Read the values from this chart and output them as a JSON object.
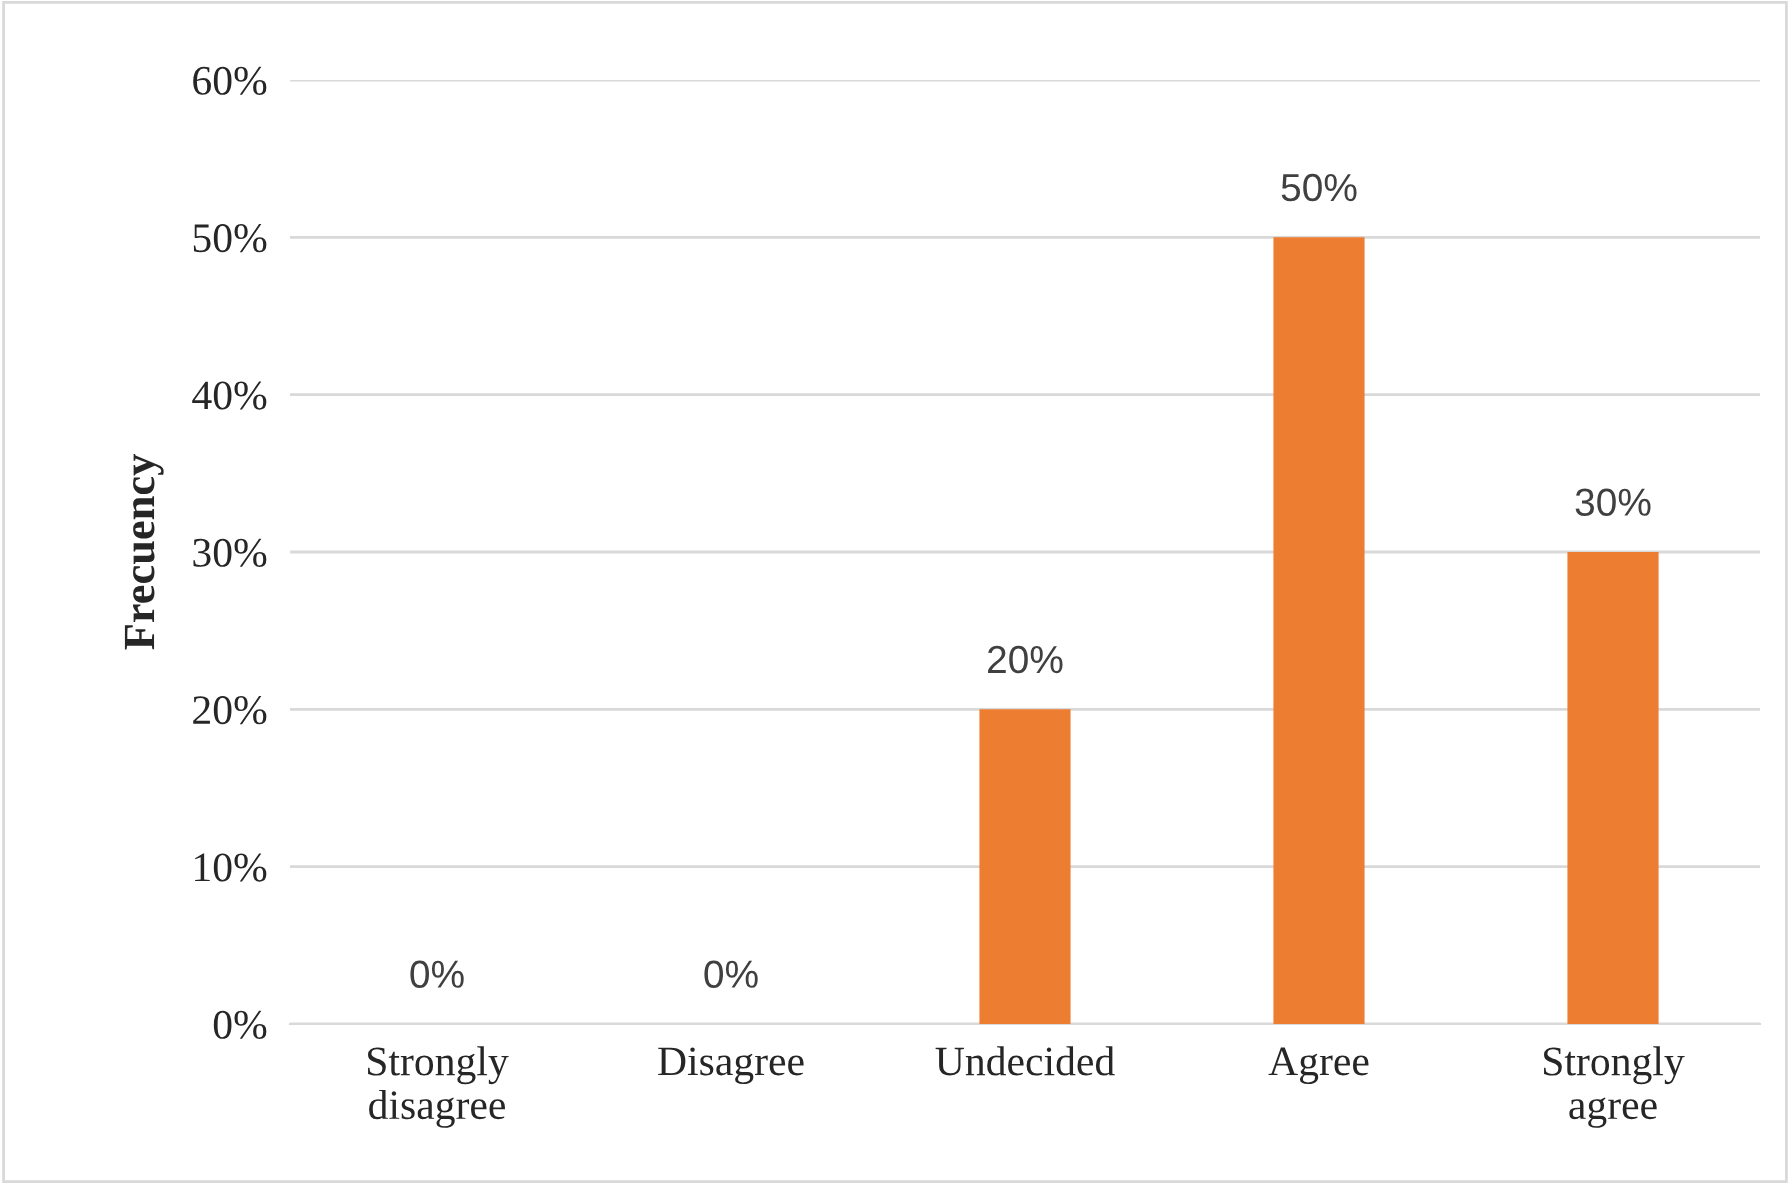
{
  "chart_data": {
    "type": "bar",
    "ylabel": "Frecuency",
    "categories": [
      "Strongly\ndisagree",
      "Disagree",
      "Undecided",
      "Agree",
      "Strongly\nagree"
    ],
    "values": [
      0,
      0,
      20,
      50,
      30
    ],
    "value_labels": [
      "0%",
      "0%",
      "20%",
      "50%",
      "30%"
    ],
    "color": "#ed7d31",
    "ylim": [
      0,
      60
    ],
    "yticks": [
      {
        "value": 0,
        "label": "0%"
      },
      {
        "value": 10,
        "label": "10%"
      },
      {
        "value": 20,
        "label": "20%"
      },
      {
        "value": 30,
        "label": "30%"
      },
      {
        "value": 40,
        "label": "40%"
      },
      {
        "value": 50,
        "label": "50%"
      },
      {
        "value": 60,
        "label": "60%"
      }
    ],
    "grid": "y",
    "legend": false
  }
}
